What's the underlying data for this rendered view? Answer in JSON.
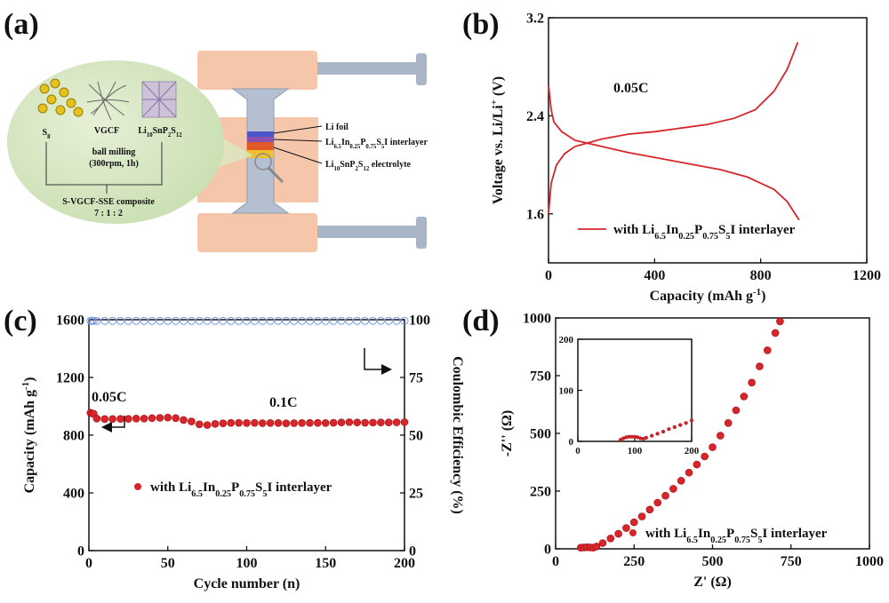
{
  "schematic": {
    "panel_label": "(a)",
    "s8": [
      {
        "t": "S"
      },
      {
        "t": "8",
        "s": "sub"
      }
    ],
    "vgcf": "VGCF",
    "lsps": [
      {
        "t": "Li"
      },
      {
        "t": "10",
        "s": "sub"
      },
      {
        "t": "SnP"
      },
      {
        "t": "2",
        "s": "sub"
      },
      {
        "t": "S"
      },
      {
        "t": "12",
        "s": "sub"
      }
    ],
    "milling": "ball milling",
    "milling_cond": "(300rpm, 1h)",
    "composite": "S-VGCF-SSE composite",
    "ratio": "7 : 1 : 2",
    "li_foil": "Li foil",
    "interlayer": [
      {
        "t": "Li"
      },
      {
        "t": "6.5",
        "s": "sub"
      },
      {
        "t": "In"
      },
      {
        "t": "0.25",
        "s": "sub"
      },
      {
        "t": "P"
      },
      {
        "t": "0.75",
        "s": "sub"
      },
      {
        "t": "S"
      },
      {
        "t": "5",
        "s": "sub"
      },
      {
        "t": "I interlayer"
      }
    ],
    "electrolyte": [
      {
        "t": "Li"
      },
      {
        "t": "10",
        "s": "sub"
      },
      {
        "t": "SnP"
      },
      {
        "t": "2",
        "s": "sub"
      },
      {
        "t": "S"
      },
      {
        "t": "12",
        "s": "sub"
      },
      {
        "t": " electrolyte"
      }
    ]
  },
  "chart_data": [
    {
      "panel_label": "(b)",
      "type": "line",
      "xlabel": [
        {
          "t": "Capacity (mAh g"
        },
        {
          "t": "-1",
          "s": "sup"
        },
        {
          "t": ")"
        }
      ],
      "ylabel": [
        {
          "t": "Voltage vs. Li/Li"
        },
        {
          "t": "+",
          "s": "sup"
        },
        {
          "t": " (V)"
        }
      ],
      "xlim": [
        0,
        1200
      ],
      "xticks": [
        0,
        400,
        800,
        1200
      ],
      "ylim": [
        1.2,
        3.2
      ],
      "yticks": [
        1.6,
        2.4,
        3.2
      ],
      "annotations": [
        "0.05C"
      ],
      "series": [
        {
          "name": [
            {
              "t": "with Li"
            },
            {
              "t": "6.5",
              "s": "sub"
            },
            {
              "t": "In"
            },
            {
              "t": "0.25",
              "s": "sub"
            },
            {
              "t": "P"
            },
            {
              "t": "0.75",
              "s": "sub"
            },
            {
              "t": "S"
            },
            {
              "t": "5",
              "s": "sub"
            },
            {
              "t": "I interlayer"
            }
          ],
          "color": "#d7262b",
          "x": [
            0,
            10,
            30,
            60,
            100,
            200,
            300,
            400,
            500,
            600,
            700,
            780,
            850,
            900,
            940,
            null,
            0,
            10,
            20,
            50,
            100,
            200,
            300,
            400,
            550,
            650,
            750,
            850,
            900,
            945
          ],
          "values": [
            1.6,
            1.85,
            2.0,
            2.09,
            2.15,
            2.21,
            2.25,
            2.27,
            2.3,
            2.33,
            2.38,
            2.45,
            2.6,
            2.78,
            3.0,
            null,
            2.65,
            2.45,
            2.35,
            2.27,
            2.2,
            2.15,
            2.1,
            2.06,
            2.0,
            1.96,
            1.9,
            1.8,
            1.7,
            1.55
          ]
        }
      ]
    },
    {
      "panel_label": "(c)",
      "type": "scatter",
      "xlabel": "Cycle number (n)",
      "ylabel": [
        {
          "t": "Capacity (mAh g"
        },
        {
          "t": "-1",
          "s": "sup"
        },
        {
          "t": ")"
        }
      ],
      "y2label": "Coulombic Efficiency (%)",
      "xlim": [
        0,
        200
      ],
      "xticks": [
        0,
        50,
        100,
        150,
        200
      ],
      "ylim": [
        0,
        1600
      ],
      "yticks": [
        0,
        400,
        800,
        1200,
        1600
      ],
      "y2lim": [
        0,
        100
      ],
      "y2ticks": [
        0,
        25,
        50,
        75,
        100
      ],
      "annotations": [
        "0.05C",
        "0.1C"
      ],
      "series": [
        {
          "name": [
            {
              "t": "with Li"
            },
            {
              "t": "6.5",
              "s": "sub"
            },
            {
              "t": "In"
            },
            {
              "t": "0.25",
              "s": "sub"
            },
            {
              "t": "P"
            },
            {
              "t": "0.75",
              "s": "sub"
            },
            {
              "t": "S"
            },
            {
              "t": "5",
              "s": "sub"
            },
            {
              "t": "I interlayer"
            }
          ],
          "color": "#d7262b",
          "marker": "filled",
          "x": [
            1,
            2,
            3,
            5,
            10,
            15,
            20,
            25,
            30,
            35,
            40,
            45,
            50,
            55,
            60,
            65,
            70,
            75,
            80,
            85,
            90,
            95,
            100,
            105,
            110,
            115,
            120,
            125,
            130,
            135,
            140,
            145,
            150,
            155,
            160,
            165,
            170,
            175,
            180,
            185,
            190,
            195,
            200
          ],
          "values": [
            955,
            950,
            948,
            915,
            912,
            912,
            913,
            913,
            915,
            915,
            918,
            920,
            922,
            918,
            905,
            895,
            875,
            870,
            878,
            882,
            885,
            885,
            884,
            885,
            883,
            884,
            884,
            882,
            883,
            884,
            885,
            885,
            884,
            886,
            888,
            890,
            888,
            886,
            887,
            888,
            888,
            889,
            890
          ]
        },
        {
          "color": "#7b9ae0",
          "marker": "open",
          "axis": "y2",
          "x": [
            1,
            2,
            3,
            5,
            10,
            15,
            20,
            25,
            30,
            35,
            40,
            45,
            50,
            55,
            60,
            65,
            70,
            75,
            80,
            85,
            90,
            95,
            100,
            105,
            110,
            115,
            120,
            125,
            130,
            135,
            140,
            145,
            150,
            155,
            160,
            165,
            170,
            175,
            180,
            185,
            190,
            195,
            200
          ],
          "values": [
            99.5,
            99.5,
            99.5,
            99.5,
            99.5,
            99.5,
            99.5,
            99.5,
            99.5,
            99.5,
            99.5,
            99.5,
            99.5,
            99.5,
            99.5,
            99.5,
            99.5,
            99.5,
            99.5,
            99.5,
            99.5,
            99.5,
            99.5,
            99.5,
            99.5,
            99.5,
            99.5,
            99.5,
            99.5,
            99.5,
            99.5,
            99.5,
            99.5,
            99.5,
            99.5,
            99.5,
            99.5,
            99.5,
            99.5,
            99.5,
            99.5,
            99.5,
            99.5
          ]
        }
      ]
    },
    {
      "panel_label": "(d)",
      "type": "scatter",
      "xlabel": "Z' (Ω)",
      "ylabel": "-Z'' (Ω)",
      "xlim": [
        0,
        1000
      ],
      "xticks": [
        0,
        250,
        500,
        750,
        1000
      ],
      "ylim": [
        0,
        1000
      ],
      "yticks": [
        0,
        250,
        500,
        750,
        1000
      ],
      "series": [
        {
          "name": [
            {
              "t": "with Li"
            },
            {
              "t": "6.5",
              "s": "sub"
            },
            {
              "t": "In"
            },
            {
              "t": "0.25",
              "s": "sub"
            },
            {
              "t": "P"
            },
            {
              "t": "0.75",
              "s": "sub"
            },
            {
              "t": "S"
            },
            {
              "t": "5",
              "s": "sub"
            },
            {
              "t": "I interlayer"
            }
          ],
          "color": "#d7262b",
          "marker": "filled",
          "x": [
            80,
            90,
            100,
            110,
            120,
            130,
            150,
            175,
            200,
            225,
            250,
            275,
            300,
            325,
            350,
            375,
            400,
            425,
            450,
            475,
            500,
            525,
            550,
            575,
            600,
            625,
            650,
            675,
            700,
            715
          ],
          "values": [
            5,
            6,
            7,
            6,
            5,
            10,
            25,
            45,
            65,
            90,
            115,
            140,
            170,
            200,
            230,
            260,
            295,
            330,
            365,
            400,
            440,
            490,
            545,
            600,
            660,
            720,
            790,
            860,
            935,
            985
          ]
        }
      ]
    },
    {
      "type": "scatter",
      "xlim": [
        0,
        200
      ],
      "xticks": [
        0,
        100,
        200
      ],
      "ylim": [
        0,
        200
      ],
      "yticks": [
        0,
        100,
        200
      ],
      "series": [
        {
          "color": "#d7262b",
          "marker": "filled",
          "x": [
            75,
            80,
            85,
            90,
            95,
            100,
            105,
            110,
            115,
            120,
            130,
            140,
            150,
            160,
            170,
            180,
            190,
            200
          ],
          "values": [
            3,
            6,
            8,
            9,
            9,
            9,
            8,
            6,
            5,
            7,
            11,
            15,
            19,
            24,
            28,
            32,
            36,
            41
          ]
        }
      ]
    }
  ]
}
